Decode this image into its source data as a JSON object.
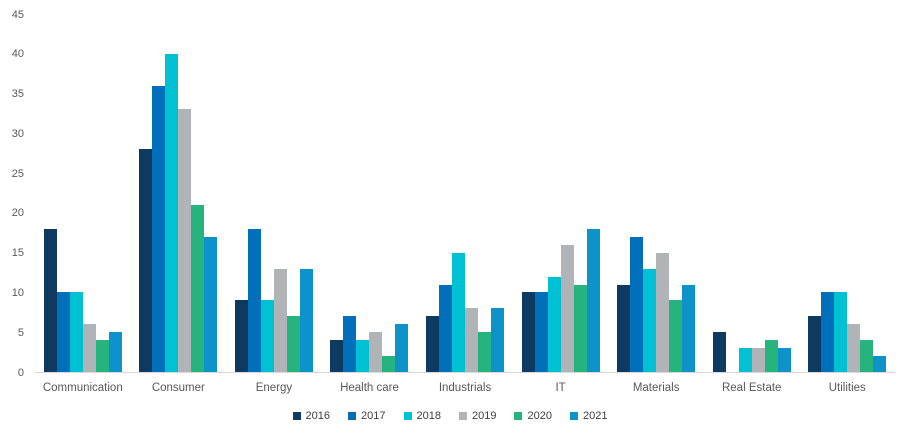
{
  "chart_data": {
    "type": "bar",
    "title": "",
    "xlabel": "",
    "ylabel": "",
    "categories": [
      "Communication",
      "Consumer",
      "Energy",
      "Health care",
      "Industrials",
      "IT",
      "Materials",
      "Real Estate",
      "Utilities"
    ],
    "series": [
      {
        "name": "2016",
        "color": "#0d3a5e",
        "values": [
          18,
          28,
          9,
          4,
          7,
          10,
          11,
          5,
          7
        ]
      },
      {
        "name": "2017",
        "color": "#0070ba",
        "values": [
          10,
          36,
          18,
          7,
          11,
          10,
          17,
          0,
          10
        ]
      },
      {
        "name": "2018",
        "color": "#00c1d4",
        "values": [
          10,
          40,
          9,
          4,
          15,
          12,
          13,
          3,
          10
        ]
      },
      {
        "name": "2019",
        "color": "#b1b4b6",
        "values": [
          6,
          33,
          13,
          5,
          8,
          16,
          15,
          3,
          6
        ]
      },
      {
        "name": "2020",
        "color": "#26b37e",
        "values": [
          4,
          21,
          7,
          2,
          5,
          11,
          9,
          4,
          4
        ]
      },
      {
        "name": "2021",
        "color": "#0d93c9",
        "values": [
          5,
          17,
          13,
          6,
          8,
          18,
          11,
          3,
          2
        ]
      }
    ],
    "ylim": [
      0,
      45
    ],
    "y_ticks": [
      0,
      5,
      10,
      15,
      20,
      25,
      30,
      35,
      40,
      45
    ],
    "grid": false,
    "legend_position": "bottom",
    "axis_line_color": "#d9d9d9",
    "tick_label_color": "#595959"
  }
}
